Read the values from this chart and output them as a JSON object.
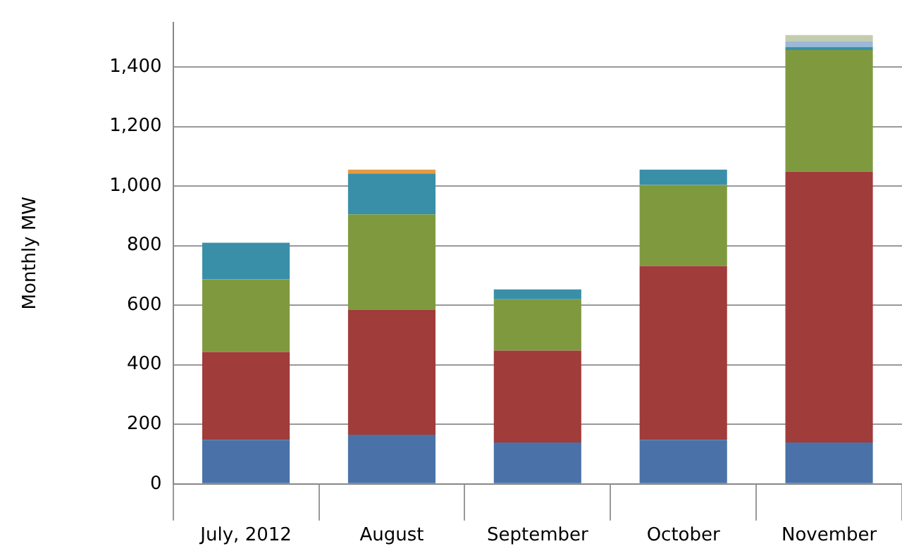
{
  "chart_data": {
    "type": "bar",
    "stacked": true,
    "ylabel": "Monthly MW",
    "categories": [
      "July, 2012",
      "August",
      "September",
      "October",
      "November"
    ],
    "series": [
      {
        "color": "#4a72a8",
        "values": [
          148,
          165,
          139,
          148,
          139
        ]
      },
      {
        "color": "#a03c3a",
        "values": [
          295,
          419,
          309,
          584,
          910
        ]
      },
      {
        "color": "#7f9a3e",
        "values": [
          244,
          321,
          172,
          272,
          408
        ]
      },
      {
        "color": "#3a8fa8",
        "values": [
          123,
          137,
          33,
          51,
          10
        ]
      },
      {
        "color": "#e89a40",
        "values": [
          null,
          13,
          null,
          null,
          null
        ]
      },
      {
        "color": "#9ab8d8",
        "values": [
          null,
          null,
          null,
          null,
          18
        ]
      },
      {
        "color": "#c4ccb0",
        "values": [
          null,
          null,
          null,
          null,
          22
        ]
      }
    ],
    "ylim": [
      0,
      1550
    ],
    "yticks": [
      {
        "value": 0,
        "label": "0"
      },
      {
        "value": 200,
        "label": "200"
      },
      {
        "value": 400,
        "label": "400"
      },
      {
        "value": 600,
        "label": "600"
      },
      {
        "value": 800,
        "label": "800"
      },
      {
        "value": 1000,
        "label": "1,000"
      },
      {
        "value": 1200,
        "label": "1,200"
      },
      {
        "value": 1400,
        "label": "1,400"
      }
    ],
    "grid": "y",
    "legend": false
  }
}
